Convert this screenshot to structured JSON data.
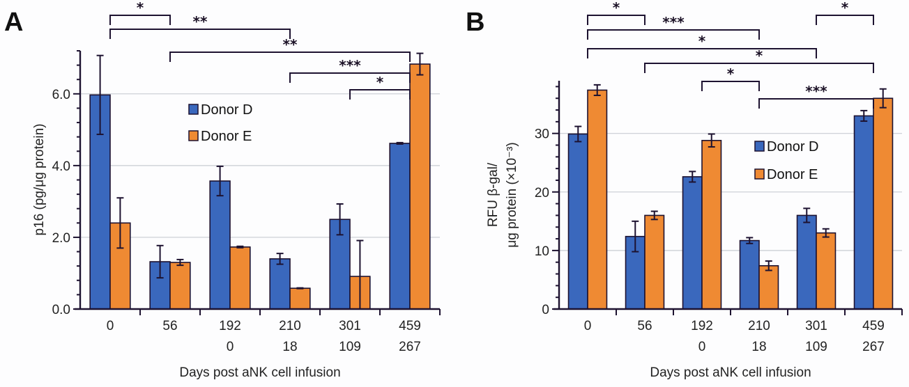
{
  "colors": {
    "donor_d": "#3a68bd",
    "donor_e": "#ef8a33",
    "outline": "#1d1230",
    "grid": "#c8ccd2",
    "axis": "#1d1230"
  },
  "chart_data": [
    {
      "panel": "A",
      "type": "bar",
      "title": "",
      "xlabel": "Days post aNK cell infusion",
      "ylabel": "p16 (pg/μg protein)",
      "ylim": [
        0,
        7.2
      ],
      "yticks": [
        0.0,
        2.0,
        4.0,
        6.0
      ],
      "ytick_labels": [
        "0.0",
        "2.0",
        "4.0",
        "6.0"
      ],
      "minor_tick_step": 0.4,
      "grid": true,
      "legend_position": "upper-center",
      "categories": [
        {
          "line1": "0",
          "line2": ""
        },
        {
          "line1": "56",
          "line2": ""
        },
        {
          "line1": "192",
          "line2": "0"
        },
        {
          "line1": "210",
          "line2": "18"
        },
        {
          "line1": "301",
          "line2": "109"
        },
        {
          "line1": "459",
          "line2": "267"
        }
      ],
      "series": [
        {
          "name": "Donor D",
          "values": [
            5.97,
            1.32,
            3.57,
            1.4,
            2.5,
            4.62
          ],
          "error": [
            1.1,
            0.45,
            0.41,
            0.15,
            0.43,
            0.02
          ]
        },
        {
          "name": "Donor E",
          "values": [
            2.4,
            1.3,
            1.73,
            0.58,
            0.91,
            6.83
          ],
          "error": [
            0.7,
            0.08,
            0.02,
            0.01,
            1.0,
            0.3
          ]
        }
      ],
      "significance": [
        {
          "from": 0,
          "to": 1,
          "label": "*"
        },
        {
          "from": 0,
          "to": 3,
          "label": "**"
        },
        {
          "from": 1,
          "to": 5,
          "label": "**"
        },
        {
          "from": 3,
          "to": 5,
          "label": "***"
        },
        {
          "from": 4,
          "to": 5,
          "label": "*"
        }
      ]
    },
    {
      "panel": "B",
      "type": "bar",
      "title": "",
      "xlabel": "Days post aNK cell infusion",
      "ylabel_line1": "RFU β-gal/",
      "ylabel_line2": "μg protein (×10⁻³)",
      "ylim": [
        0,
        39
      ],
      "yticks": [
        0,
        10,
        20,
        30
      ],
      "ytick_labels": [
        "0",
        "10",
        "20",
        "30"
      ],
      "minor_tick_step": 2,
      "grid": true,
      "legend_position": "center-right",
      "categories": [
        {
          "line1": "0",
          "line2": ""
        },
        {
          "line1": "56",
          "line2": ""
        },
        {
          "line1": "192",
          "line2": "0"
        },
        {
          "line1": "210",
          "line2": "18"
        },
        {
          "line1": "301",
          "line2": "109"
        },
        {
          "line1": "459",
          "line2": "267"
        }
      ],
      "series": [
        {
          "name": "Donor D",
          "values": [
            29.9,
            12.4,
            22.6,
            11.7,
            16.0,
            33.0
          ],
          "error": [
            1.3,
            2.6,
            0.9,
            0.5,
            1.2,
            0.9
          ]
        },
        {
          "name": "Donor E",
          "values": [
            37.4,
            16.0,
            28.8,
            7.4,
            13.0,
            36.0
          ],
          "error": [
            0.9,
            0.7,
            1.1,
            0.8,
            0.7,
            1.6
          ]
        }
      ],
      "significance": [
        {
          "from": 0,
          "to": 1,
          "label": "*"
        },
        {
          "from": 4,
          "to": 5,
          "label": "*"
        },
        {
          "from": 0,
          "to": 3,
          "label": "***"
        },
        {
          "from": 0,
          "to": 4,
          "label": "*"
        },
        {
          "from": 1,
          "to": 5,
          "label": "*"
        },
        {
          "from": 2,
          "to": 3,
          "label": "*"
        },
        {
          "from": 3,
          "to": 5,
          "label": "***"
        }
      ]
    }
  ]
}
